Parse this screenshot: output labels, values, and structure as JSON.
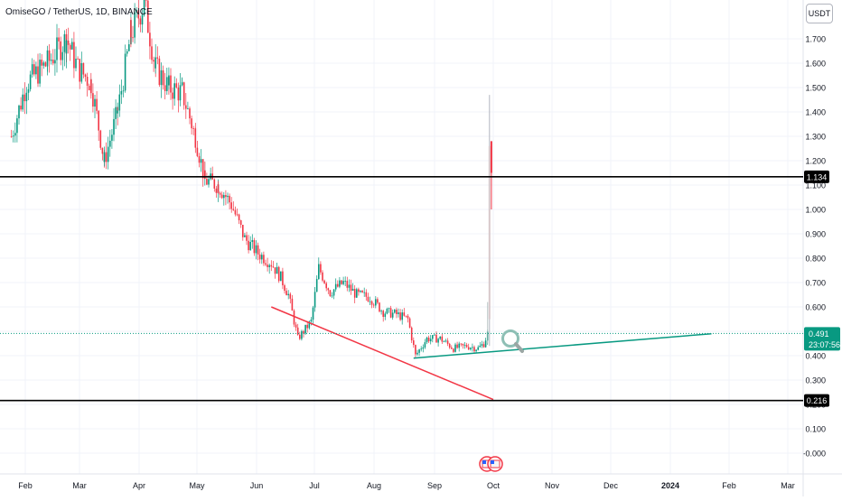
{
  "header": {
    "symbol_title": "OmiseGO / TetherUS, 1D, BINANCE",
    "currency": "USDT"
  },
  "chart_data": {
    "type": "candlestick",
    "symbol": "OmiseGO / TetherUS",
    "interval": "1D",
    "exchange": "BINANCE",
    "y_ticks": [
      "1.700",
      "1.600",
      "1.500",
      "1.400",
      "1.300",
      "1.200",
      "1.100",
      "1.000",
      "0.900",
      "0.800",
      "0.700",
      "0.600",
      "0.500",
      "0.400",
      "0.300",
      "0.200",
      "0.100",
      "-0.000"
    ],
    "ylim": [
      -0.03,
      1.85
    ],
    "x_ticks": [
      "Feb",
      "Mar",
      "Apr",
      "May",
      "Jun",
      "Jul",
      "Aug",
      "Sep",
      "Oct",
      "Nov",
      "Dec",
      "2024",
      "Feb",
      "Mar"
    ],
    "x_tick_bold": "2024",
    "price_points": [
      [
        "2023-01-20",
        1.3
      ],
      [
        "2023-01-28",
        1.52
      ],
      [
        "2023-02-08",
        1.6
      ],
      [
        "2023-02-18",
        1.7
      ],
      [
        "2023-02-24",
        1.58
      ],
      [
        "2023-03-03",
        1.52
      ],
      [
        "2023-03-10",
        1.2
      ],
      [
        "2023-03-17",
        1.4
      ],
      [
        "2023-03-24",
        1.72
      ],
      [
        "2023-03-31",
        1.85
      ],
      [
        "2023-04-06",
        1.58
      ],
      [
        "2023-04-13",
        1.5
      ],
      [
        "2023-04-20",
        1.48
      ],
      [
        "2023-04-27",
        1.3
      ],
      [
        "2023-05-02",
        1.12
      ],
      [
        "2023-05-09",
        1.1
      ],
      [
        "2023-05-16",
        1.02
      ],
      [
        "2023-05-23",
        0.88
      ],
      [
        "2023-05-30",
        0.82
      ],
      [
        "2023-06-06",
        0.78
      ],
      [
        "2023-06-11",
        0.72
      ],
      [
        "2023-06-15",
        0.65
      ],
      [
        "2023-06-20",
        0.47
      ],
      [
        "2023-06-27",
        0.54
      ],
      [
        "2023-07-01",
        0.76
      ],
      [
        "2023-07-07",
        0.66
      ],
      [
        "2023-07-14",
        0.7
      ],
      [
        "2023-07-21",
        0.65
      ],
      [
        "2023-07-28",
        0.64
      ],
      [
        "2023-08-04",
        0.58
      ],
      [
        "2023-08-11",
        0.57
      ],
      [
        "2023-08-17",
        0.55
      ],
      [
        "2023-08-21",
        0.4
      ],
      [
        "2023-08-27",
        0.47
      ],
      [
        "2023-09-03",
        0.47
      ],
      [
        "2023-09-10",
        0.43
      ],
      [
        "2023-09-17",
        0.44
      ],
      [
        "2023-09-23",
        0.43
      ],
      [
        "2023-09-26",
        0.45
      ],
      [
        "2023-09-28",
        0.49
      ],
      [
        "2023-09-29",
        1.28
      ],
      [
        "2023-09-30",
        1.15
      ]
    ],
    "spike_wick_high": 1.47,
    "horizontal_lines": [
      {
        "price": 1.134,
        "label": "1.134",
        "color": "#000000"
      },
      {
        "price": 0.216,
        "label": "0.216",
        "color": "#000000"
      }
    ],
    "trend_lines": [
      {
        "color": "#f23645",
        "start": [
          "2023-06-06",
          0.6
        ],
        "end": [
          "2023-10-01",
          0.22
        ]
      },
      {
        "color": "#089981",
        "start": [
          "2023-08-20",
          0.39
        ],
        "end": [
          "2024-01-24",
          0.49
        ]
      }
    ],
    "current_price": {
      "value": "0.491",
      "countdown": "23:07:56",
      "color": "#089981"
    },
    "colors": {
      "up": "#089981",
      "down": "#f23645",
      "wick": "#787b86",
      "axis_text": "#131722",
      "grid": "#f0f3fa"
    }
  }
}
